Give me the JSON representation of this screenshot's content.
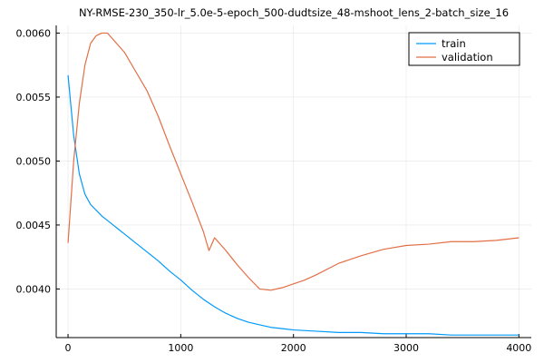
{
  "chart_data": {
    "type": "line",
    "title": "NY-RMSE-230_350-lr_5.0e-5-epoch_500-dudtsize_48-mshoot_lens_2-batch_size_16",
    "xlabel": "",
    "ylabel": "",
    "xlim": [
      -105,
      4110
    ],
    "ylim": [
      0.00362,
      0.00606
    ],
    "xticks": [
      0,
      1000,
      2000,
      3000,
      4000
    ],
    "xtick_labels": [
      "0",
      "1000",
      "2000",
      "3000",
      "4000"
    ],
    "yticks": [
      0.004,
      0.0045,
      0.005,
      0.0055,
      0.006
    ],
    "ytick_labels": [
      "0.0040",
      "0.0045",
      "0.0050",
      "0.0055",
      "0.0060"
    ],
    "grid": true,
    "legend_position": "top-right",
    "series": [
      {
        "name": "train",
        "color": "#009AFA",
        "x": [
          0,
          50,
          100,
          150,
          200,
          300,
          400,
          500,
          600,
          700,
          800,
          900,
          1000,
          1100,
          1200,
          1300,
          1400,
          1500,
          1600,
          1700,
          1800,
          1900,
          2000,
          2200,
          2400,
          2600,
          2800,
          3000,
          3200,
          3400,
          3600,
          3800,
          4000
        ],
        "y": [
          0.00567,
          0.0052,
          0.0049,
          0.00474,
          0.00466,
          0.00457,
          0.0045,
          0.00443,
          0.00436,
          0.00429,
          0.00422,
          0.00414,
          0.00407,
          0.00399,
          0.00392,
          0.00386,
          0.00381,
          0.00377,
          0.00374,
          0.00372,
          0.0037,
          0.00369,
          0.00368,
          0.00367,
          0.00366,
          0.00366,
          0.00365,
          0.00365,
          0.00365,
          0.00364,
          0.00364,
          0.00364,
          0.00364
        ]
      },
      {
        "name": "validation",
        "color": "#E26F46",
        "x": [
          0,
          50,
          100,
          150,
          200,
          250,
          300,
          350,
          400,
          500,
          600,
          700,
          800,
          900,
          1000,
          1100,
          1200,
          1250,
          1300,
          1400,
          1500,
          1600,
          1700,
          1800,
          1900,
          2000,
          2100,
          2200,
          2400,
          2600,
          2800,
          3000,
          3200,
          3400,
          3600,
          3800,
          4000
        ],
        "y": [
          0.00436,
          0.005,
          0.00545,
          0.00575,
          0.00592,
          0.00598,
          0.006,
          0.006,
          0.00595,
          0.00585,
          0.0057,
          0.00555,
          0.00535,
          0.00512,
          0.0049,
          0.00468,
          0.00445,
          0.0043,
          0.0044,
          0.0043,
          0.00419,
          0.00409,
          0.004,
          0.00399,
          0.00401,
          0.00404,
          0.00407,
          0.00411,
          0.0042,
          0.00426,
          0.00431,
          0.00434,
          0.00435,
          0.00437,
          0.00437,
          0.00438,
          0.0044
        ]
      }
    ]
  }
}
